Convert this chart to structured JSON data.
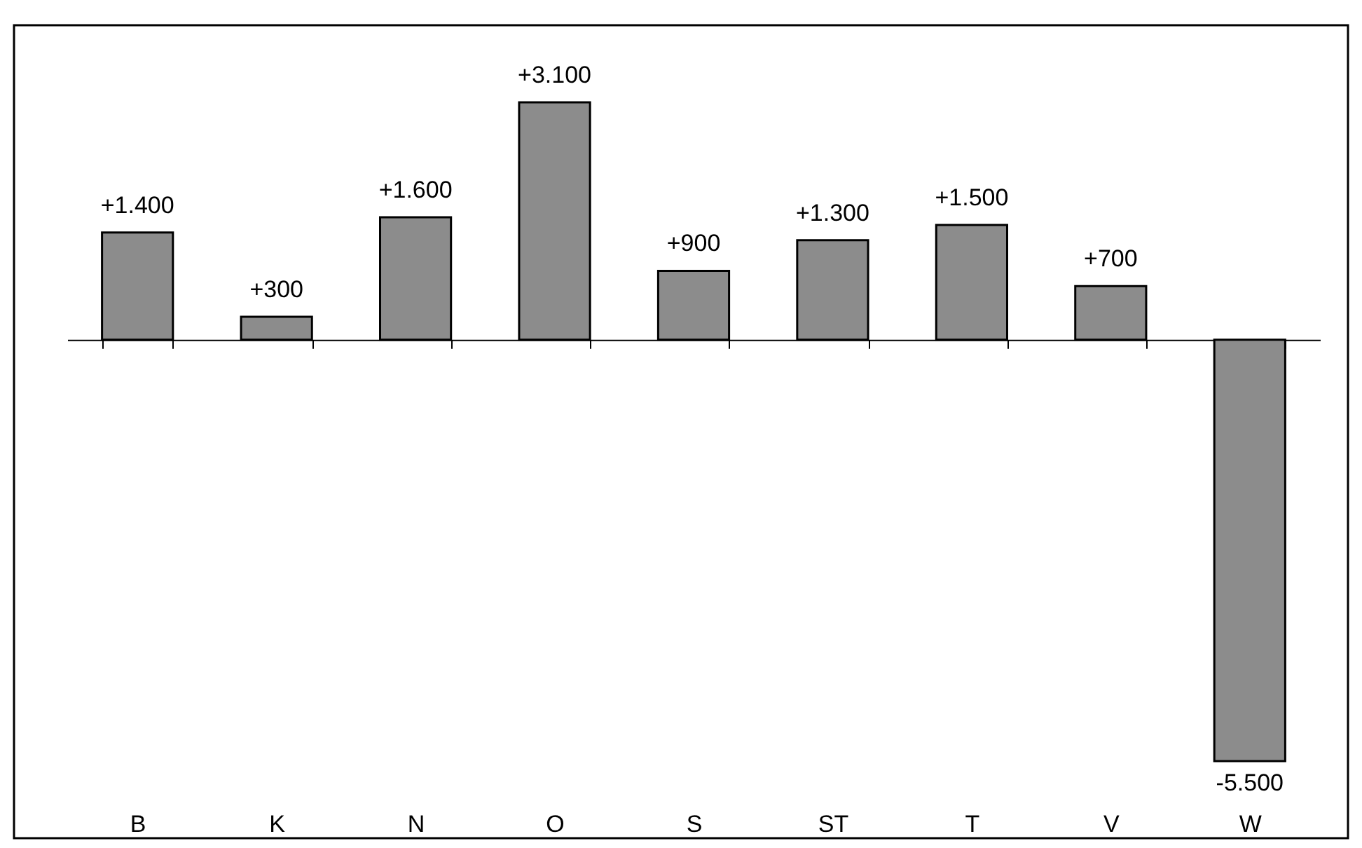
{
  "chart_data": {
    "type": "bar",
    "categories": [
      "B",
      "K",
      "N",
      "O",
      "S",
      "ST",
      "T",
      "V",
      "W"
    ],
    "values": [
      1400,
      300,
      1600,
      3100,
      900,
      1300,
      1500,
      700,
      -5500
    ],
    "value_labels": [
      "+1.400",
      "+300",
      "+1.600",
      "+3.100",
      "+900",
      "+1.300",
      "+1.500",
      "+700",
      "-5.500"
    ],
    "color": "#8c8c8c",
    "grid": false
  }
}
